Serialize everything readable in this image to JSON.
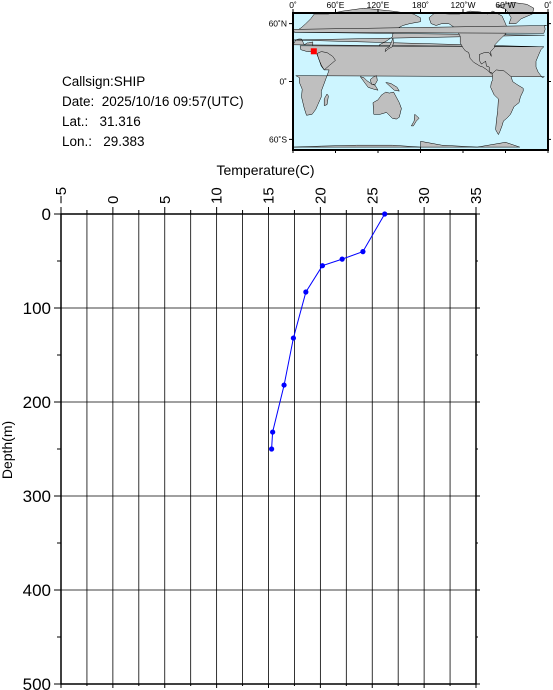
{
  "station": {
    "callsign": "Callsign:SHIP",
    "date": "Date:  2025/10/16 09:57(UTC)",
    "lat": "Lat.:   31.316",
    "lon": "Lon.:   29.383",
    "marker_color": "#ff0000"
  },
  "map": {
    "lon_tick_labels": [
      "0˚",
      "60˚E",
      "120˚E",
      "180˚",
      "120˚W",
      "60˚W",
      "0˚"
    ],
    "lat_tick_labels": [
      "60˚N",
      "0˚",
      "60˚S"
    ],
    "ocean_color": "#cdf5ff",
    "land_color": "#bfbfbf",
    "station_lon": 29.383,
    "station_lat": 31.316
  },
  "chart_data": {
    "type": "line",
    "xlabel": "Temperature(C)",
    "ylabel": "Depth(m)",
    "xlim": [
      -5,
      35
    ],
    "ylim": [
      0,
      500
    ],
    "y_inverted": true,
    "x_ticks": [
      "−5",
      "0",
      "5",
      "10",
      "15",
      "20",
      "25",
      "30",
      "35"
    ],
    "y_ticks": [
      "0",
      "100",
      "200",
      "300",
      "400",
      "500"
    ],
    "grid": true,
    "line_color": "#0000ff",
    "series": [
      {
        "x": [
          26.2,
          24.1,
          22.1,
          20.2,
          18.6,
          17.4,
          16.5,
          15.4,
          15.3
        ],
        "y": [
          0,
          40,
          48,
          55,
          83,
          132,
          182,
          232,
          250
        ]
      }
    ]
  }
}
